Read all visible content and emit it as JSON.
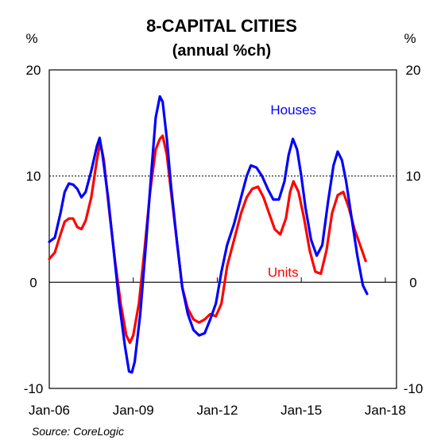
{
  "chart_data": {
    "type": "line",
    "title": "8-CAPITAL CITIES",
    "subtitle": "(annual %ch)",
    "ylabel_left": "%",
    "ylabel_right": "%",
    "source": "Source: CoreLogic",
    "xlim": [
      2006.0,
      2018.4
    ],
    "ylim": [
      -10,
      20
    ],
    "y_ticks": [
      -10,
      0,
      10,
      20
    ],
    "y_tick_labels": [
      "-10",
      "0",
      "10",
      "20"
    ],
    "x_ticks": [
      2006,
      2009,
      2012,
      2015,
      2018
    ],
    "x_tick_labels": [
      "Jan-06",
      "Jan-09",
      "Jan-12",
      "Jan-15",
      "Jan-18"
    ],
    "reference_lines": [
      {
        "y": 10,
        "style": "dotted"
      },
      {
        "y": 0,
        "style": "solid"
      }
    ],
    "grid": false,
    "legend": "none",
    "series": [
      {
        "name": "Houses",
        "color": "#0000ff",
        "points": [
          [
            2006.0,
            3.8
          ],
          [
            2006.2,
            4.2
          ],
          [
            2006.4,
            6.5
          ],
          [
            2006.55,
            8.5
          ],
          [
            2006.7,
            9.3
          ],
          [
            2006.85,
            9.2
          ],
          [
            2007.0,
            8.8
          ],
          [
            2007.15,
            8.0
          ],
          [
            2007.3,
            8.5
          ],
          [
            2007.5,
            10.5
          ],
          [
            2007.7,
            12.8
          ],
          [
            2007.8,
            13.6
          ],
          [
            2007.9,
            12.0
          ],
          [
            2008.1,
            8.0
          ],
          [
            2008.3,
            3.0
          ],
          [
            2008.5,
            -2.0
          ],
          [
            2008.7,
            -6.0
          ],
          [
            2008.85,
            -8.4
          ],
          [
            2008.95,
            -8.5
          ],
          [
            2009.05,
            -7.5
          ],
          [
            2009.25,
            -3.0
          ],
          [
            2009.45,
            3.5
          ],
          [
            2009.65,
            10.5
          ],
          [
            2009.8,
            15.5
          ],
          [
            2009.95,
            17.5
          ],
          [
            2010.05,
            17.0
          ],
          [
            2010.2,
            13.5
          ],
          [
            2010.35,
            9.0
          ],
          [
            2010.55,
            4.0
          ],
          [
            2010.75,
            -0.5
          ],
          [
            2010.95,
            -3.0
          ],
          [
            2011.15,
            -4.5
          ],
          [
            2011.35,
            -5.0
          ],
          [
            2011.55,
            -4.8
          ],
          [
            2011.75,
            -3.5
          ],
          [
            2011.95,
            -2.0
          ],
          [
            2012.15,
            1.0
          ],
          [
            2012.35,
            3.5
          ],
          [
            2012.6,
            5.5
          ],
          [
            2012.85,
            8.0
          ],
          [
            2013.05,
            10.0
          ],
          [
            2013.2,
            11.0
          ],
          [
            2013.4,
            10.8
          ],
          [
            2013.6,
            10.0
          ],
          [
            2013.8,
            8.8
          ],
          [
            2014.0,
            7.8
          ],
          [
            2014.2,
            7.8
          ],
          [
            2014.4,
            9.5
          ],
          [
            2014.55,
            12.0
          ],
          [
            2014.7,
            13.5
          ],
          [
            2014.85,
            12.5
          ],
          [
            2015.0,
            10.0
          ],
          [
            2015.15,
            7.0
          ],
          [
            2015.35,
            4.0
          ],
          [
            2015.55,
            2.5
          ],
          [
            2015.75,
            3.5
          ],
          [
            2015.95,
            7.5
          ],
          [
            2016.15,
            11.0
          ],
          [
            2016.3,
            12.3
          ],
          [
            2016.45,
            11.5
          ],
          [
            2016.6,
            9.5
          ],
          [
            2016.8,
            6.0
          ],
          [
            2017.0,
            2.5
          ],
          [
            2017.2,
            -0.3
          ],
          [
            2017.35,
            -1.1
          ]
        ]
      },
      {
        "name": "Units",
        "color": "#ff0000",
        "points": [
          [
            2006.0,
            2.2
          ],
          [
            2006.2,
            2.8
          ],
          [
            2006.4,
            4.5
          ],
          [
            2006.55,
            5.7
          ],
          [
            2006.7,
            6.0
          ],
          [
            2006.85,
            6.0
          ],
          [
            2007.0,
            5.2
          ],
          [
            2007.15,
            5.0
          ],
          [
            2007.3,
            5.8
          ],
          [
            2007.5,
            8.0
          ],
          [
            2007.7,
            11.5
          ],
          [
            2007.82,
            13.2
          ],
          [
            2007.95,
            11.5
          ],
          [
            2008.15,
            6.5
          ],
          [
            2008.35,
            2.0
          ],
          [
            2008.55,
            -2.0
          ],
          [
            2008.75,
            -5.0
          ],
          [
            2008.88,
            -5.7
          ],
          [
            2009.0,
            -5.0
          ],
          [
            2009.2,
            -2.0
          ],
          [
            2009.4,
            3.0
          ],
          [
            2009.6,
            8.5
          ],
          [
            2009.8,
            12.5
          ],
          [
            2009.95,
            13.5
          ],
          [
            2010.05,
            13.8
          ],
          [
            2010.2,
            12.0
          ],
          [
            2010.35,
            8.5
          ],
          [
            2010.55,
            4.0
          ],
          [
            2010.75,
            -0.5
          ],
          [
            2010.95,
            -2.5
          ],
          [
            2011.15,
            -3.5
          ],
          [
            2011.35,
            -3.8
          ],
          [
            2011.55,
            -3.5
          ],
          [
            2011.75,
            -3.0
          ],
          [
            2011.95,
            -3.2
          ],
          [
            2012.15,
            -2.0
          ],
          [
            2012.35,
            1.5
          ],
          [
            2012.6,
            4.0
          ],
          [
            2012.85,
            6.5
          ],
          [
            2013.05,
            8.0
          ],
          [
            2013.25,
            8.8
          ],
          [
            2013.45,
            9.0
          ],
          [
            2013.65,
            8.0
          ],
          [
            2013.85,
            6.5
          ],
          [
            2014.05,
            5.0
          ],
          [
            2014.25,
            4.5
          ],
          [
            2014.45,
            6.0
          ],
          [
            2014.6,
            8.5
          ],
          [
            2014.72,
            9.5
          ],
          [
            2014.9,
            8.5
          ],
          [
            2015.1,
            6.0
          ],
          [
            2015.3,
            3.0
          ],
          [
            2015.5,
            1.0
          ],
          [
            2015.7,
            0.8
          ],
          [
            2015.9,
            3.0
          ],
          [
            2016.1,
            6.5
          ],
          [
            2016.3,
            8.2
          ],
          [
            2016.5,
            8.5
          ],
          [
            2016.7,
            7.0
          ],
          [
            2016.9,
            5.0
          ],
          [
            2017.1,
            3.5
          ],
          [
            2017.3,
            2.0
          ]
        ]
      }
    ]
  }
}
